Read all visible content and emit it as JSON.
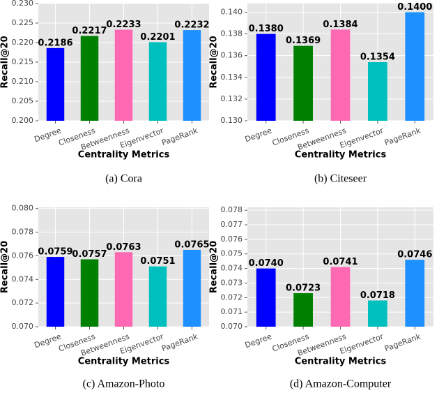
{
  "chart_data": [
    {
      "type": "bar",
      "caption": "(a) Cora",
      "xlabel": "Centrality Metrics",
      "ylabel": "Recall@20",
      "categories": [
        "Degree",
        "Closeness",
        "Betweenness",
        "Eigenvector",
        "PageRank"
      ],
      "values": [
        0.2186,
        0.2217,
        0.2233,
        0.2201,
        0.2232
      ],
      "value_labels": [
        "0.2186",
        "0.2217",
        "0.2233",
        "0.2201",
        "0.2232"
      ],
      "colors": [
        "#0000ff",
        "#008000",
        "#ff69b4",
        "#00bfbf",
        "#1e90ff"
      ],
      "ylim": [
        0.2,
        0.23
      ],
      "yticks": [
        {
          "value": 0.2,
          "label": "0.200"
        },
        {
          "value": 0.205,
          "label": "0.205"
        },
        {
          "value": 0.21,
          "label": "0.210"
        },
        {
          "value": 0.215,
          "label": "0.215"
        },
        {
          "value": 0.22,
          "label": "0.220"
        },
        {
          "value": 0.225,
          "label": "0.225"
        },
        {
          "value": 0.23,
          "label": "0.230"
        }
      ],
      "grid": true
    },
    {
      "type": "bar",
      "caption": "(b) Citeseer",
      "xlabel": "Centrality Metrics",
      "ylabel": "Recall@20",
      "categories": [
        "Degree",
        "Closeness",
        "Betweenness",
        "Eigenvector",
        "PageRank"
      ],
      "values": [
        0.138,
        0.1369,
        0.1384,
        0.1354,
        0.14
      ],
      "value_labels": [
        "0.1380",
        "0.1369",
        "0.1384",
        "0.1354",
        "0.1400"
      ],
      "colors": [
        "#0000ff",
        "#008000",
        "#ff69b4",
        "#00bfbf",
        "#1e90ff"
      ],
      "ylim": [
        0.13,
        0.1408
      ],
      "yticks": [
        {
          "value": 0.13,
          "label": "0.130"
        },
        {
          "value": 0.132,
          "label": "0.132"
        },
        {
          "value": 0.134,
          "label": "0.134"
        },
        {
          "value": 0.136,
          "label": "0.136"
        },
        {
          "value": 0.138,
          "label": "0.138"
        },
        {
          "value": 0.14,
          "label": "0.140"
        }
      ],
      "grid": true
    },
    {
      "type": "bar",
      "caption": "(c) Amazon-Photo",
      "xlabel": "Centrality Metrics",
      "ylabel": "Recall@20",
      "categories": [
        "Degree",
        "Closeness",
        "Betweenness",
        "Eigenvector",
        "PageRank"
      ],
      "values": [
        0.0759,
        0.0757,
        0.0763,
        0.0751,
        0.0765
      ],
      "value_labels": [
        "0.0759",
        "0.0757",
        "0.0763",
        "0.0751",
        "0.0765"
      ],
      "colors": [
        "#0000ff",
        "#008000",
        "#ff69b4",
        "#00bfbf",
        "#1e90ff"
      ],
      "ylim": [
        0.07,
        0.0801
      ],
      "yticks": [
        {
          "value": 0.07,
          "label": "0.070"
        },
        {
          "value": 0.072,
          "label": "0.072"
        },
        {
          "value": 0.074,
          "label": "0.074"
        },
        {
          "value": 0.076,
          "label": "0.076"
        },
        {
          "value": 0.078,
          "label": "0.078"
        },
        {
          "value": 0.08,
          "label": "0.080"
        }
      ],
      "grid": true
    },
    {
      "type": "bar",
      "caption": "(d) Amazon-Computer",
      "xlabel": "Centrality Metrics",
      "ylabel": "Recall@20",
      "categories": [
        "Degree",
        "Closeness",
        "Betweenness",
        "Eigenvector",
        "PageRank"
      ],
      "values": [
        0.074,
        0.0723,
        0.0741,
        0.0718,
        0.0746
      ],
      "value_labels": [
        "0.0740",
        "0.0723",
        "0.0741",
        "0.0718",
        "0.0746"
      ],
      "colors": [
        "#0000ff",
        "#008000",
        "#ff69b4",
        "#00bfbf",
        "#1e90ff"
      ],
      "ylim": [
        0.07,
        0.0782
      ],
      "yticks": [
        {
          "value": 0.07,
          "label": "0.070"
        },
        {
          "value": 0.071,
          "label": "0.071"
        },
        {
          "value": 0.072,
          "label": "0.072"
        },
        {
          "value": 0.073,
          "label": "0.073"
        },
        {
          "value": 0.074,
          "label": "0.074"
        },
        {
          "value": 0.075,
          "label": "0.075"
        },
        {
          "value": 0.076,
          "label": "0.076"
        },
        {
          "value": 0.077,
          "label": "0.077"
        },
        {
          "value": 0.078,
          "label": "0.078"
        }
      ],
      "grid": true
    }
  ]
}
